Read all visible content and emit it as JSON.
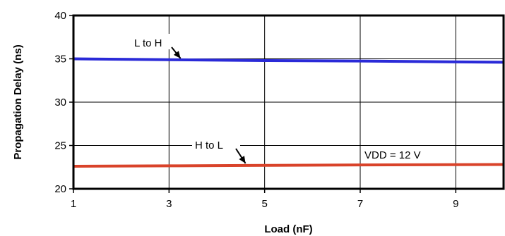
{
  "chart_data": {
    "type": "line",
    "title": "",
    "xlabel": "Load (nF)",
    "ylabel": "Propagation Delay (ns)",
    "xlim": [
      1,
      10
    ],
    "ylim": [
      20,
      40
    ],
    "xticks": [
      1,
      3,
      5,
      7,
      9
    ],
    "yticks": [
      20,
      25,
      30,
      35,
      40
    ],
    "grid": true,
    "legend": "none",
    "series": [
      {
        "name": "L to H",
        "color": "#2a2ad8",
        "x": [
          1,
          3,
          5,
          7,
          10
        ],
        "values": [
          35.0,
          34.9,
          34.8,
          34.75,
          34.6
        ]
      },
      {
        "name": "H to L",
        "color": "#d9432a",
        "x": [
          1,
          3,
          5,
          7,
          10
        ],
        "values": [
          22.6,
          22.65,
          22.7,
          22.75,
          22.8
        ]
      }
    ],
    "annotations": [
      {
        "text": "L to H",
        "target_x": 3.3,
        "target_series": 0
      },
      {
        "text": "H to L",
        "target_x": 4.6,
        "target_series": 1
      },
      {
        "text": "VDD = 12 V"
      }
    ]
  }
}
